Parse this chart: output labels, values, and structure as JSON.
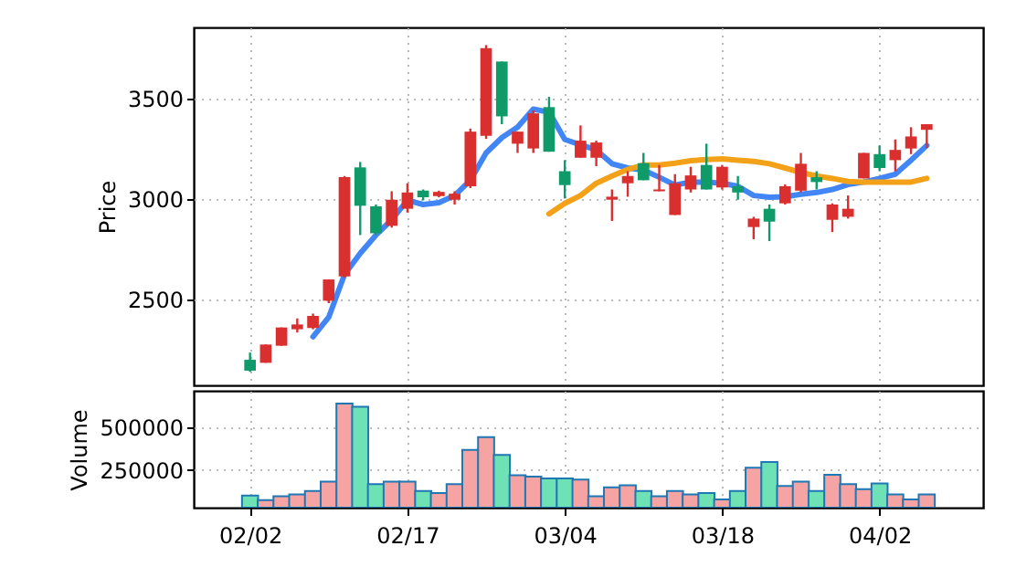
{
  "chart_data": [
    {
      "type": "candlestick",
      "ylabel": "Price",
      "ylim": [
        2073,
        3855
      ],
      "yticks": [
        2500,
        3000,
        3500
      ],
      "grid": true,
      "tick_labels": "y",
      "categories": [
        null,
        null,
        null,
        null,
        null,
        null,
        null,
        null,
        null,
        null,
        null,
        null,
        null,
        null,
        null,
        null,
        null,
        null,
        null,
        null,
        null,
        null,
        null,
        null,
        null,
        null,
        null,
        null,
        null,
        null,
        null,
        null,
        null,
        null,
        null,
        null,
        null,
        null,
        null,
        null,
        null,
        null,
        null,
        null
      ],
      "ohlc": [
        [
          2200,
          2236,
          2140,
          2146
        ],
        [
          2185,
          2276,
          2185,
          2276
        ],
        [
          2270,
          2361,
          2270,
          2361
        ],
        [
          2352,
          2406,
          2336,
          2376
        ],
        [
          2358,
          2430,
          2352,
          2418
        ],
        [
          2494,
          2600,
          2482,
          2600
        ],
        [
          2615,
          3115,
          2609,
          3109
        ],
        [
          3158,
          3185,
          2821,
          2967
        ],
        [
          2964,
          2973,
          2821,
          2830
        ],
        [
          2867,
          3039,
          2858,
          2997
        ],
        [
          2952,
          3079,
          2933,
          3033
        ],
        [
          3042,
          3048,
          2994,
          3009
        ],
        [
          3015,
          3042,
          3009,
          3036
        ],
        [
          2997,
          3039,
          2973,
          3027
        ],
        [
          3064,
          3351,
          3055,
          3336
        ],
        [
          3315,
          3767,
          3300,
          3752
        ],
        [
          3685,
          3685,
          3373,
          3412
        ],
        [
          3276,
          3336,
          3230,
          3336
        ],
        [
          3252,
          3442,
          3230,
          3427
        ],
        [
          3458,
          3509,
          3236,
          3236
        ],
        [
          3139,
          3194,
          3003,
          3070
        ],
        [
          3206,
          3367,
          3206,
          3291
        ],
        [
          3206,
          3291,
          3164,
          3282
        ],
        [
          2997,
          3048,
          2891,
          3012
        ],
        [
          3079,
          3139,
          3012,
          3115
        ],
        [
          3179,
          3230,
          3094,
          3094
        ],
        [
          3039,
          3170,
          3039,
          3048
        ],
        [
          2921,
          3124,
          2921,
          3079
        ],
        [
          3048,
          3161,
          3033,
          3118
        ],
        [
          3170,
          3276,
          3048,
          3048
        ],
        [
          3058,
          3170,
          3048,
          3161
        ],
        [
          3064,
          3115,
          2997,
          3033
        ],
        [
          2861,
          2912,
          2800,
          2903
        ],
        [
          2952,
          2973,
          2791,
          2888
        ],
        [
          2979,
          3073,
          2973,
          3064
        ],
        [
          3042,
          3230,
          3033,
          3176
        ],
        [
          3109,
          3139,
          3048,
          3085
        ],
        [
          2897,
          2979,
          2836,
          2973
        ],
        [
          2912,
          3018,
          2903,
          2952
        ],
        [
          3103,
          3230,
          3103,
          3230
        ],
        [
          3224,
          3267,
          3139,
          3155
        ],
        [
          3194,
          3297,
          3139,
          3245
        ],
        [
          3252,
          3358,
          3224,
          3312
        ],
        [
          3345,
          3373,
          3255,
          3373
        ]
      ],
      "colors": [
        "#0f9a6a",
        "#d9302f",
        "#d9302f",
        "#d9302f",
        "#d9302f",
        "#d9302f",
        "#d9302f",
        "#0f9a6a",
        "#0f9a6a",
        "#d9302f",
        "#d9302f",
        "#0f9a6a",
        "#d9302f",
        "#d9302f",
        "#d9302f",
        "#d9302f",
        "#0f9a6a",
        "#d9302f",
        "#d9302f",
        "#0f9a6a",
        "#0f9a6a",
        "#d9302f",
        "#d9302f",
        "#d9302f",
        "#d9302f",
        "#0f9a6a",
        "#d9302f",
        "#d9302f",
        "#d9302f",
        "#0f9a6a",
        "#d9302f",
        "#0f9a6a",
        "#d9302f",
        "#0f9a6a",
        "#d9302f",
        "#d9302f",
        "#0f9a6a",
        "#d9302f",
        "#d9302f",
        "#d9302f",
        "#0f9a6a",
        "#d9302f",
        "#d9302f",
        "#d9302f"
      ],
      "series": [
        {
          "type": "line",
          "color": "#4285f4",
          "values": [
            null,
            null,
            null,
            null,
            2315,
            2412,
            2624,
            2730,
            2821,
            2897,
            2994,
            2973,
            2982,
            3018,
            3094,
            3230,
            3306,
            3358,
            3448,
            3433,
            3297,
            3270,
            3245,
            3176,
            3155,
            3145,
            3109,
            3070,
            3085,
            3085,
            3079,
            3064,
            3018,
            3009,
            3012,
            3024,
            3033,
            3048,
            3073,
            3085,
            3103,
            3124,
            3194,
            3267
          ]
        },
        {
          "type": "line",
          "color": "#f4a11a",
          "values": [
            null,
            null,
            null,
            null,
            null,
            null,
            null,
            null,
            null,
            null,
            null,
            null,
            null,
            null,
            null,
            null,
            null,
            null,
            null,
            2927,
            2979,
            3018,
            3079,
            3115,
            3148,
            3170,
            3170,
            3179,
            3191,
            3197,
            3200,
            3194,
            3188,
            3176,
            3155,
            3133,
            3115,
            3103,
            3088,
            3085,
            3085,
            3085,
            3085,
            3103
          ]
        }
      ]
    },
    {
      "type": "bar",
      "ylabel": "Volume",
      "ylim": [
        33000,
        710000
      ],
      "yticks": [
        250000,
        500000
      ],
      "grid": true,
      "categories": [
        "02/02",
        null,
        null,
        null,
        null,
        null,
        null,
        null,
        null,
        null,
        "02/17",
        null,
        null,
        null,
        null,
        null,
        null,
        null,
        null,
        null,
        "03/04",
        null,
        null,
        null,
        null,
        null,
        null,
        null,
        null,
        null,
        "03/18",
        null,
        null,
        null,
        null,
        null,
        null,
        null,
        null,
        null,
        "04/02",
        null,
        null,
        null
      ],
      "values": [
        103000,
        77000,
        99000,
        110000,
        129000,
        184000,
        636000,
        618000,
        169000,
        184000,
        184000,
        129000,
        118000,
        169000,
        368000,
        441000,
        338000,
        221000,
        213000,
        202000,
        202000,
        195000,
        99000,
        151000,
        162000,
        129000,
        99000,
        129000,
        110000,
        118000,
        81000,
        129000,
        265000,
        298000,
        158000,
        184000,
        129000,
        224000,
        169000,
        140000,
        173000,
        110000,
        81000,
        110000
      ],
      "colors": [
        "#6ee2b4",
        "#f6a3a3",
        "#f6a3a3",
        "#f6a3a3",
        "#f6a3a3",
        "#f6a3a3",
        "#f6a3a3",
        "#6ee2b4",
        "#6ee2b4",
        "#f6a3a3",
        "#f6a3a3",
        "#6ee2b4",
        "#f6a3a3",
        "#f6a3a3",
        "#f6a3a3",
        "#f6a3a3",
        "#6ee2b4",
        "#f6a3a3",
        "#f6a3a3",
        "#6ee2b4",
        "#6ee2b4",
        "#f6a3a3",
        "#f6a3a3",
        "#f6a3a3",
        "#f6a3a3",
        "#6ee2b4",
        "#f6a3a3",
        "#f6a3a3",
        "#f6a3a3",
        "#6ee2b4",
        "#f6a3a3",
        "#6ee2b4",
        "#f6a3a3",
        "#6ee2b4",
        "#f6a3a3",
        "#f6a3a3",
        "#6ee2b4",
        "#f6a3a3",
        "#f6a3a3",
        "#f6a3a3",
        "#6ee2b4",
        "#f6a3a3",
        "#f6a3a3",
        "#f6a3a3"
      ]
    }
  ]
}
